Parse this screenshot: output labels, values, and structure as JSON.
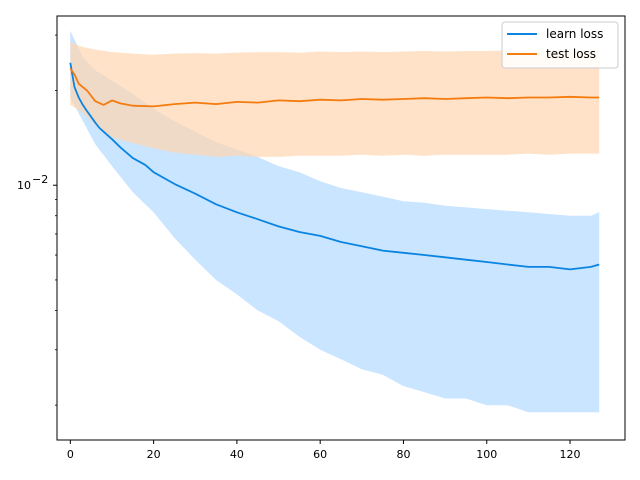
{
  "chart_data": {
    "type": "line",
    "title": "",
    "xlabel": "",
    "ylabel": "",
    "xlim": [
      -3.2,
      133.2
    ],
    "ylim": [
      0.00155,
      0.0345
    ],
    "yscale": "log",
    "grid": false,
    "legend_position": "top-right",
    "x_ticks": [
      0,
      20,
      40,
      60,
      80,
      100,
      120
    ],
    "x_tick_labels": [
      "0",
      "20",
      "40",
      "60",
      "80",
      "100",
      "120"
    ],
    "y_major_ticks": [
      0.01
    ],
    "y_tick_labels": [
      "10^-2"
    ],
    "y_minor_ticks": [
      0.002,
      0.003,
      0.004,
      0.005,
      0.006,
      0.007,
      0.008,
      0.009,
      0.02,
      0.03
    ],
    "series": [
      {
        "name": "learn loss",
        "color": "#1f77b4",
        "line_color": "#0a84e0",
        "band_color": "#bfe0ff",
        "points": [
          [
            0,
            0.0245
          ],
          [
            1,
            0.0205
          ],
          [
            2,
            0.019
          ],
          [
            3,
            0.018
          ],
          [
            4,
            0.0172
          ],
          [
            5,
            0.0165
          ],
          [
            6,
            0.0158
          ],
          [
            7,
            0.0152
          ],
          [
            8,
            0.0148
          ],
          [
            10,
            0.014
          ],
          [
            12,
            0.0132
          ],
          [
            15,
            0.0122
          ],
          [
            18,
            0.0116
          ],
          [
            20,
            0.011
          ],
          [
            25,
            0.0101
          ],
          [
            30,
            0.0094
          ],
          [
            35,
            0.0087
          ],
          [
            40,
            0.0082
          ],
          [
            45,
            0.0078
          ],
          [
            50,
            0.0074
          ],
          [
            55,
            0.0071
          ],
          [
            60,
            0.0069
          ],
          [
            65,
            0.0066
          ],
          [
            70,
            0.0064
          ],
          [
            75,
            0.0062
          ],
          [
            80,
            0.0061
          ],
          [
            85,
            0.006
          ],
          [
            90,
            0.0059
          ],
          [
            95,
            0.0058
          ],
          [
            100,
            0.0057
          ],
          [
            105,
            0.0056
          ],
          [
            110,
            0.0055
          ],
          [
            115,
            0.0055
          ],
          [
            120,
            0.0054
          ],
          [
            125,
            0.0055
          ],
          [
            127,
            0.0056
          ]
        ],
        "band_upper": [
          [
            0,
            0.031
          ],
          [
            3,
            0.0255
          ],
          [
            6,
            0.0232
          ],
          [
            10,
            0.0215
          ],
          [
            15,
            0.0195
          ],
          [
            20,
            0.0175
          ],
          [
            25,
            0.016
          ],
          [
            30,
            0.0148
          ],
          [
            35,
            0.0137
          ],
          [
            40,
            0.013
          ],
          [
            45,
            0.0123
          ],
          [
            50,
            0.0115
          ],
          [
            55,
            0.011
          ],
          [
            60,
            0.0103
          ],
          [
            65,
            0.0098
          ],
          [
            70,
            0.0095
          ],
          [
            75,
            0.0092
          ],
          [
            80,
            0.0089
          ],
          [
            85,
            0.0088
          ],
          [
            90,
            0.0086
          ],
          [
            95,
            0.0085
          ],
          [
            100,
            0.0084
          ],
          [
            105,
            0.0083
          ],
          [
            110,
            0.0082
          ],
          [
            115,
            0.0081
          ],
          [
            120,
            0.008
          ],
          [
            125,
            0.008
          ],
          [
            127,
            0.0082
          ]
        ],
        "band_lower": [
          [
            0,
            0.019
          ],
          [
            3,
            0.016
          ],
          [
            6,
            0.0135
          ],
          [
            10,
            0.0115
          ],
          [
            15,
            0.0095
          ],
          [
            20,
            0.0082
          ],
          [
            25,
            0.0068
          ],
          [
            30,
            0.0058
          ],
          [
            35,
            0.005
          ],
          [
            40,
            0.0045
          ],
          [
            45,
            0.004
          ],
          [
            50,
            0.0037
          ],
          [
            55,
            0.0033
          ],
          [
            60,
            0.003
          ],
          [
            65,
            0.0028
          ],
          [
            70,
            0.0026
          ],
          [
            75,
            0.0025
          ],
          [
            80,
            0.0023
          ],
          [
            85,
            0.0022
          ],
          [
            90,
            0.0021
          ],
          [
            95,
            0.0021
          ],
          [
            100,
            0.002
          ],
          [
            105,
            0.002
          ],
          [
            110,
            0.0019
          ],
          [
            115,
            0.0019
          ],
          [
            120,
            0.0019
          ],
          [
            125,
            0.0019
          ],
          [
            127,
            0.0019
          ]
        ]
      },
      {
        "name": "test loss",
        "color": "#ff7f0e",
        "line_color": "#f47b0e",
        "band_color": "#ffd6b0",
        "points": [
          [
            0,
            0.0235
          ],
          [
            1,
            0.0225
          ],
          [
            2,
            0.021
          ],
          [
            4,
            0.02
          ],
          [
            6,
            0.0185
          ],
          [
            8,
            0.018
          ],
          [
            10,
            0.0186
          ],
          [
            12,
            0.0182
          ],
          [
            15,
            0.0179
          ],
          [
            20,
            0.0178
          ],
          [
            25,
            0.0181
          ],
          [
            30,
            0.0183
          ],
          [
            35,
            0.0181
          ],
          [
            40,
            0.0184
          ],
          [
            45,
            0.0183
          ],
          [
            50,
            0.0186
          ],
          [
            55,
            0.0185
          ],
          [
            60,
            0.0187
          ],
          [
            65,
            0.0186
          ],
          [
            70,
            0.0188
          ],
          [
            75,
            0.0187
          ],
          [
            80,
            0.0188
          ],
          [
            85,
            0.0189
          ],
          [
            90,
            0.0188
          ],
          [
            95,
            0.0189
          ],
          [
            100,
            0.019
          ],
          [
            105,
            0.0189
          ],
          [
            110,
            0.019
          ],
          [
            115,
            0.019
          ],
          [
            120,
            0.0191
          ],
          [
            125,
            0.019
          ],
          [
            127,
            0.019
          ]
        ],
        "band_upper": [
          [
            0,
            0.0285
          ],
          [
            3,
            0.0275
          ],
          [
            6,
            0.027
          ],
          [
            10,
            0.0265
          ],
          [
            15,
            0.0262
          ],
          [
            20,
            0.026
          ],
          [
            25,
            0.0262
          ],
          [
            30,
            0.0263
          ],
          [
            35,
            0.0262
          ],
          [
            40,
            0.0264
          ],
          [
            45,
            0.0265
          ],
          [
            50,
            0.0265
          ],
          [
            55,
            0.0264
          ],
          [
            60,
            0.0266
          ],
          [
            65,
            0.0265
          ],
          [
            70,
            0.0266
          ],
          [
            75,
            0.0265
          ],
          [
            80,
            0.0266
          ],
          [
            85,
            0.0267
          ],
          [
            90,
            0.0266
          ],
          [
            95,
            0.0267
          ],
          [
            100,
            0.0267
          ],
          [
            105,
            0.0268
          ],
          [
            110,
            0.0267
          ],
          [
            115,
            0.0268
          ],
          [
            120,
            0.0268
          ],
          [
            125,
            0.0268
          ],
          [
            127,
            0.0268
          ]
        ],
        "band_lower": [
          [
            0,
            0.018
          ],
          [
            3,
            0.017
          ],
          [
            6,
            0.0155
          ],
          [
            10,
            0.0142
          ],
          [
            15,
            0.0136
          ],
          [
            20,
            0.0131
          ],
          [
            25,
            0.0127
          ],
          [
            30,
            0.0125
          ],
          [
            35,
            0.0123
          ],
          [
            40,
            0.0124
          ],
          [
            45,
            0.0123
          ],
          [
            50,
            0.0123
          ],
          [
            55,
            0.0124
          ],
          [
            60,
            0.0124
          ],
          [
            65,
            0.0124
          ],
          [
            70,
            0.0125
          ],
          [
            75,
            0.0124
          ],
          [
            80,
            0.0125
          ],
          [
            85,
            0.0124
          ],
          [
            90,
            0.0125
          ],
          [
            95,
            0.0125
          ],
          [
            100,
            0.0125
          ],
          [
            105,
            0.0125
          ],
          [
            110,
            0.0126
          ],
          [
            115,
            0.0125
          ],
          [
            120,
            0.0126
          ],
          [
            125,
            0.0126
          ],
          [
            127,
            0.0126
          ]
        ]
      }
    ]
  }
}
